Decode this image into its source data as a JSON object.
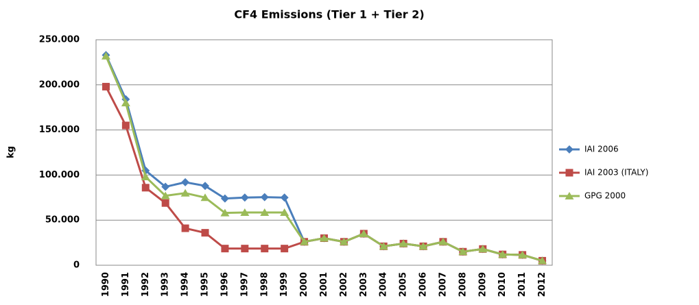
{
  "chart_data": {
    "type": "line",
    "title": "CF4 Emissions (Tier 1 + Tier 2)",
    "y_label": "kg",
    "categories": [
      "1990",
      "1991",
      "1992",
      "1993",
      "1994",
      "1995",
      "1996",
      "1997",
      "1998",
      "1999",
      "2000",
      "2001",
      "2002",
      "2003",
      "2004",
      "2005",
      "2006",
      "2007",
      "2008",
      "2009",
      "2010",
      "2011",
      "2012"
    ],
    "series": [
      {
        "name": "IAI 2006",
        "color": "#4a7ebb",
        "marker": "diamond",
        "values": [
          233000,
          184000,
          105000,
          87000,
          92000,
          88000,
          74000,
          75000,
          75500,
          75000,
          26000,
          30000,
          26000,
          35000,
          21000,
          24000,
          21000,
          26000,
          15000,
          18000,
          12000,
          11500,
          5000
        ]
      },
      {
        "name": "IAI 2003  (ITALY)",
        "color": "#be4b48",
        "marker": "square",
        "values": [
          198000,
          155000,
          86000,
          69000,
          41000,
          36000,
          18500,
          18500,
          18500,
          18500,
          26000,
          30000,
          26000,
          35000,
          21000,
          24000,
          21000,
          26000,
          15000,
          18000,
          12000,
          11500,
          5000
        ]
      },
      {
        "name": "GPG 2000",
        "color": "#9bbb59",
        "marker": "triangle",
        "values": [
          232000,
          180000,
          98000,
          77000,
          80000,
          75000,
          58000,
          58500,
          58500,
          58500,
          26000,
          30000,
          26000,
          35000,
          21000,
          24000,
          21000,
          26000,
          15000,
          18000,
          12000,
          11500,
          5000
        ]
      }
    ],
    "ylim": [
      0,
      250000
    ],
    "yticks": [
      0,
      {
        "value": 50000,
        "label": "50.000"
      },
      {
        "value": 100000,
        "label": "100.000"
      },
      {
        "value": 150000,
        "label": "150.000"
      },
      {
        "value": 200000,
        "label": "200.000"
      },
      {
        "value": 250000,
        "label": "250.000"
      }
    ],
    "grid": true,
    "legend": "right"
  }
}
